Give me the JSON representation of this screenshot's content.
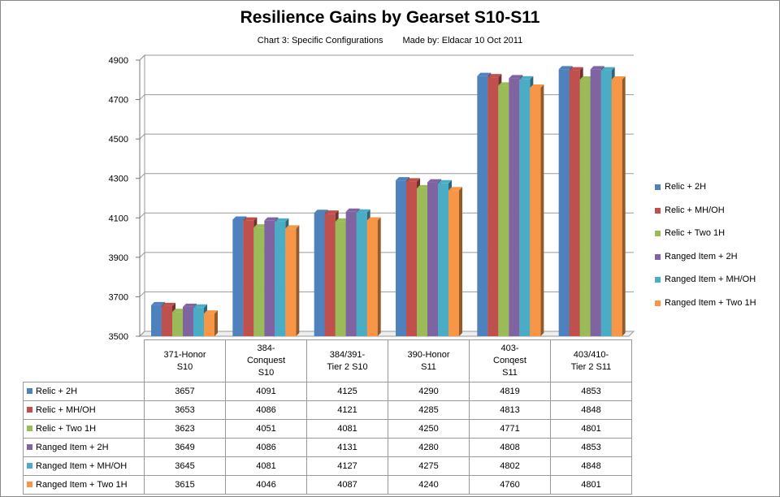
{
  "chart_data": {
    "type": "bar",
    "title": "Resilience Gains by Gearset S10-S11",
    "subtitle_left": "Chart 3: Specific Configurations",
    "subtitle_right": "Made by:  Eldacar  10 Oct 2011",
    "categories": [
      "371-Honor\nS10",
      "384-\nConquest\nS10",
      "384/391-\nTier 2 S10",
      "390-Honor\nS11",
      "403-\nConqest\nS11",
      "403/410-\nTier 2 S11"
    ],
    "series": [
      {
        "name": "Relic + 2H",
        "color": "#4F81BD",
        "values": [
          3657,
          4091,
          4125,
          4290,
          4819,
          4853
        ]
      },
      {
        "name": "Relic + MH/OH",
        "color": "#C0504D",
        "values": [
          3653,
          4086,
          4121,
          4285,
          4813,
          4848
        ]
      },
      {
        "name": "Relic + Two 1H",
        "color": "#9BBB59",
        "values": [
          3623,
          4051,
          4081,
          4250,
          4771,
          4801
        ]
      },
      {
        "name": "Ranged Item + 2H",
        "color": "#8064A2",
        "values": [
          3649,
          4086,
          4131,
          4280,
          4808,
          4853
        ]
      },
      {
        "name": "Ranged Item + MH/OH",
        "color": "#4BACC6",
        "values": [
          3645,
          4081,
          4127,
          4275,
          4802,
          4848
        ]
      },
      {
        "name": "Ranged Item + Two 1H",
        "color": "#F79646",
        "values": [
          3615,
          4046,
          4087,
          4240,
          4760,
          4801
        ]
      }
    ],
    "ylim": [
      3500,
      4900
    ],
    "yticks": [
      "3500",
      "3700",
      "3900",
      "4100",
      "4300",
      "4500",
      "4700",
      "4900"
    ],
    "grid": true,
    "legend": "right",
    "data_table": true
  }
}
